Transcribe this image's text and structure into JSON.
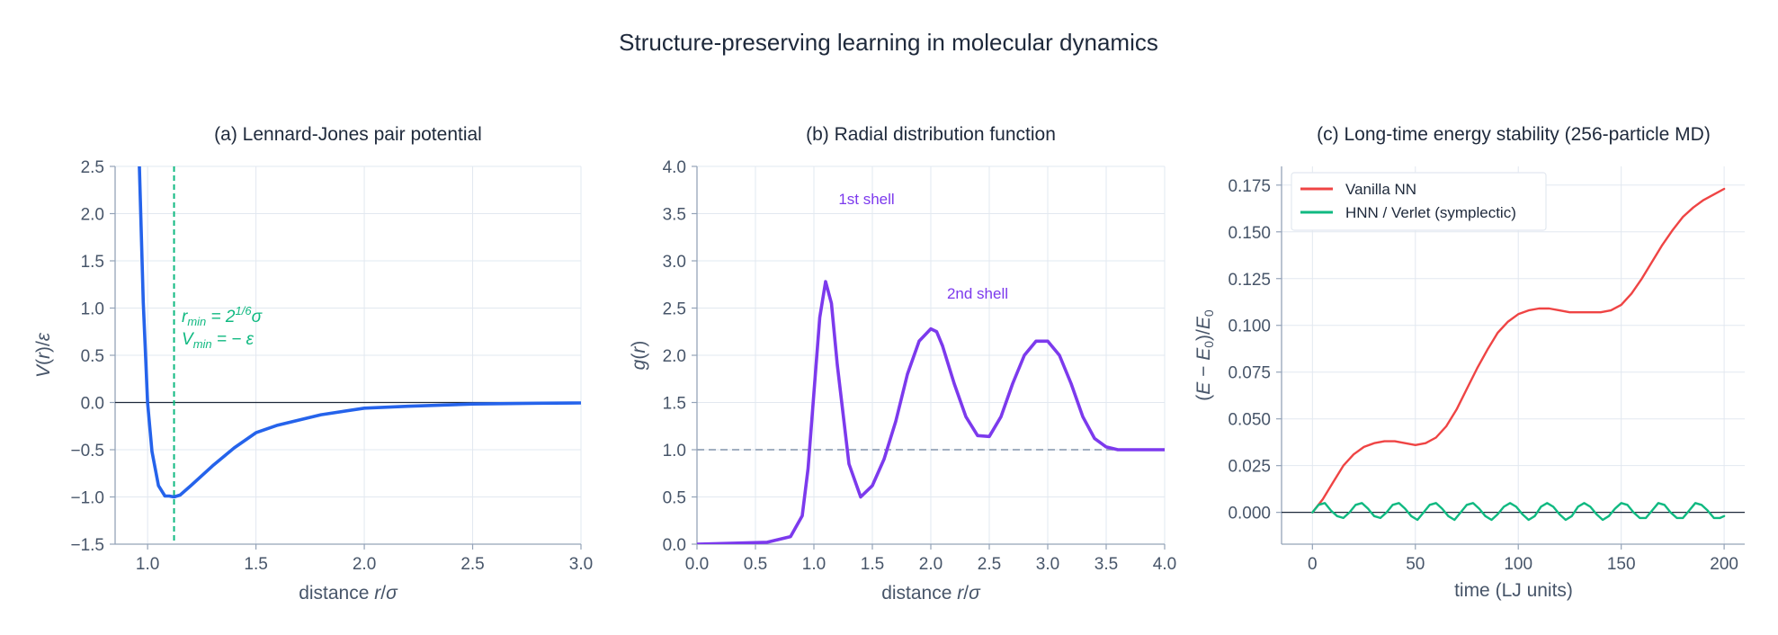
{
  "figure_title": "Structure-preserving learning in molecular dynamics",
  "colors": {
    "lj": "#2563eb",
    "rmin": "#10b981",
    "rdf": "#7c3aed",
    "ref": "#94a3b8",
    "vanilla": "#ef4444",
    "hnn": "#10b981",
    "zero": "#1e293b"
  },
  "chart_data": [
    {
      "type": "line",
      "title": "(a) Lennard-Jones pair potential",
      "xlabel": "distance r/σ",
      "ylabel": "V(r)/ε",
      "xlim": [
        0.85,
        3.0
      ],
      "ylim": [
        -1.5,
        2.5
      ],
      "xticks": [
        1.0,
        1.5,
        2.0,
        2.5,
        3.0
      ],
      "xtick_labels": [
        "1.0",
        "1.5",
        "2.0",
        "2.5",
        "3.0"
      ],
      "yticks": [
        -1.5,
        -1.0,
        -0.5,
        0.0,
        0.5,
        1.0,
        1.5,
        2.0,
        2.5
      ],
      "ytick_labels": [
        "−1.5",
        "−1.0",
        "−0.5",
        "0.0",
        "0.5",
        "1.0",
        "1.5",
        "2.0",
        "2.5"
      ],
      "grid": true,
      "series": [
        {
          "x": [
            0.96,
            0.98,
            1.0,
            1.02,
            1.05,
            1.08,
            1.1,
            1.122,
            1.15,
            1.2,
            1.3,
            1.4,
            1.5,
            1.6,
            1.8,
            2.0,
            2.2,
            2.5,
            2.8,
            3.0
          ],
          "y": [
            2.66,
            1.06,
            0.0,
            -0.52,
            -0.88,
            -0.99,
            -0.99,
            -1.0,
            -0.98,
            -0.88,
            -0.67,
            -0.48,
            -0.32,
            -0.24,
            -0.13,
            -0.06,
            -0.04,
            -0.016,
            -0.008,
            -0.005
          ]
        }
      ],
      "zero_line": 0.0,
      "vline": {
        "x": 1.122,
        "label_line1": "r_min = 2^(1/6)σ",
        "label_line2": "V_min = −ε"
      }
    },
    {
      "type": "line",
      "title": "(b) Radial distribution function",
      "xlabel": "distance r/σ",
      "ylabel": "g(r)",
      "xlim": [
        0.0,
        4.0
      ],
      "ylim": [
        0.0,
        4.0
      ],
      "xticks": [
        0.0,
        0.5,
        1.0,
        1.5,
        2.0,
        2.5,
        3.0,
        3.5,
        4.0
      ],
      "xtick_labels": [
        "0.0",
        "0.5",
        "1.0",
        "1.5",
        "2.0",
        "2.5",
        "3.0",
        "3.5",
        "4.0"
      ],
      "yticks": [
        0.0,
        0.5,
        1.0,
        1.5,
        2.0,
        2.5,
        3.0,
        3.5,
        4.0
      ],
      "ytick_labels": [
        "0.0",
        "0.5",
        "1.0",
        "1.5",
        "2.0",
        "2.5",
        "3.0",
        "3.5",
        "4.0"
      ],
      "grid": true,
      "series": [
        {
          "x": [
            0.0,
            0.6,
            0.8,
            0.9,
            0.95,
            1.0,
            1.05,
            1.1,
            1.15,
            1.2,
            1.3,
            1.4,
            1.5,
            1.6,
            1.7,
            1.8,
            1.9,
            2.0,
            2.05,
            2.1,
            2.2,
            2.3,
            2.4,
            2.5,
            2.6,
            2.7,
            2.8,
            2.9,
            3.0,
            3.1,
            3.2,
            3.3,
            3.4,
            3.5,
            3.6,
            3.7,
            3.8,
            4.0
          ],
          "y": [
            0.0,
            0.02,
            0.08,
            0.3,
            0.8,
            1.6,
            2.4,
            2.78,
            2.55,
            1.9,
            0.85,
            0.5,
            0.62,
            0.9,
            1.3,
            1.8,
            2.15,
            2.28,
            2.25,
            2.1,
            1.7,
            1.35,
            1.15,
            1.14,
            1.35,
            1.7,
            2.0,
            2.15,
            2.15,
            2.0,
            1.7,
            1.35,
            1.12,
            1.03,
            1.0,
            1.0,
            1.0,
            1.0
          ]
        }
      ],
      "ref_line": 1.0,
      "annotations": [
        {
          "text": "1st shell",
          "x": 1.45,
          "y": 3.6
        },
        {
          "text": "2nd shell",
          "x": 2.4,
          "y": 2.6
        }
      ]
    },
    {
      "type": "line",
      "title": "(c) Long-time energy stability (256-particle MD)",
      "xlabel": "time (LJ units)",
      "ylabel": "(E − E0)/E0",
      "xlim": [
        -15,
        210
      ],
      "ylim": [
        -0.017,
        0.185
      ],
      "xticks": [
        0,
        50,
        100,
        150,
        200
      ],
      "xtick_labels": [
        "0",
        "50",
        "100",
        "150",
        "200"
      ],
      "yticks": [
        0.0,
        0.025,
        0.05,
        0.075,
        0.1,
        0.125,
        0.15,
        0.175
      ],
      "ytick_labels": [
        "0.000",
        "0.025",
        "0.050",
        "0.075",
        "0.100",
        "0.125",
        "0.150",
        "0.175"
      ],
      "grid": true,
      "legend_position": "top-left",
      "zero_line": 0.0,
      "series": [
        {
          "name": "Vanilla NN",
          "x": [
            0,
            5,
            10,
            15,
            20,
            25,
            30,
            35,
            40,
            45,
            50,
            55,
            60,
            65,
            70,
            75,
            80,
            85,
            90,
            95,
            100,
            105,
            110,
            115,
            120,
            125,
            130,
            135,
            140,
            145,
            150,
            155,
            160,
            165,
            170,
            175,
            180,
            185,
            190,
            195,
            200
          ],
          "y": [
            0.0,
            0.007,
            0.016,
            0.025,
            0.031,
            0.035,
            0.037,
            0.038,
            0.038,
            0.037,
            0.036,
            0.037,
            0.04,
            0.046,
            0.055,
            0.066,
            0.077,
            0.087,
            0.096,
            0.102,
            0.106,
            0.108,
            0.109,
            0.109,
            0.108,
            0.107,
            0.107,
            0.107,
            0.107,
            0.108,
            0.111,
            0.117,
            0.125,
            0.134,
            0.143,
            0.151,
            0.158,
            0.163,
            0.167,
            0.17,
            0.173
          ]
        },
        {
          "name": "HNN / Verlet (symplectic)",
          "x": [
            0,
            3,
            6,
            9,
            12,
            15,
            18,
            21,
            24,
            27,
            30,
            33,
            36,
            39,
            42,
            45,
            48,
            51,
            54,
            57,
            60,
            63,
            66,
            69,
            72,
            75,
            78,
            81,
            84,
            87,
            90,
            93,
            96,
            99,
            102,
            105,
            108,
            111,
            114,
            117,
            120,
            123,
            126,
            129,
            132,
            135,
            138,
            141,
            144,
            147,
            150,
            153,
            156,
            159,
            162,
            165,
            168,
            171,
            174,
            177,
            180,
            183,
            186,
            189,
            192,
            195,
            198,
            200
          ],
          "y": [
            0.0,
            0.004,
            0.005,
            0.001,
            -0.002,
            -0.003,
            0.0,
            0.004,
            0.005,
            0.002,
            -0.002,
            -0.003,
            0.0,
            0.004,
            0.005,
            0.002,
            -0.002,
            -0.004,
            0.0,
            0.004,
            0.005,
            0.002,
            -0.002,
            -0.004,
            0.0,
            0.004,
            0.005,
            0.002,
            -0.002,
            -0.004,
            -0.001,
            0.003,
            0.005,
            0.003,
            -0.001,
            -0.004,
            -0.002,
            0.003,
            0.005,
            0.003,
            -0.001,
            -0.004,
            -0.002,
            0.003,
            0.005,
            0.003,
            -0.001,
            -0.004,
            -0.002,
            0.002,
            0.005,
            0.004,
            0.0,
            -0.003,
            -0.003,
            0.001,
            0.005,
            0.004,
            0.0,
            -0.003,
            -0.003,
            0.001,
            0.005,
            0.004,
            0.001,
            -0.003,
            -0.003,
            -0.002
          ]
        }
      ]
    }
  ]
}
